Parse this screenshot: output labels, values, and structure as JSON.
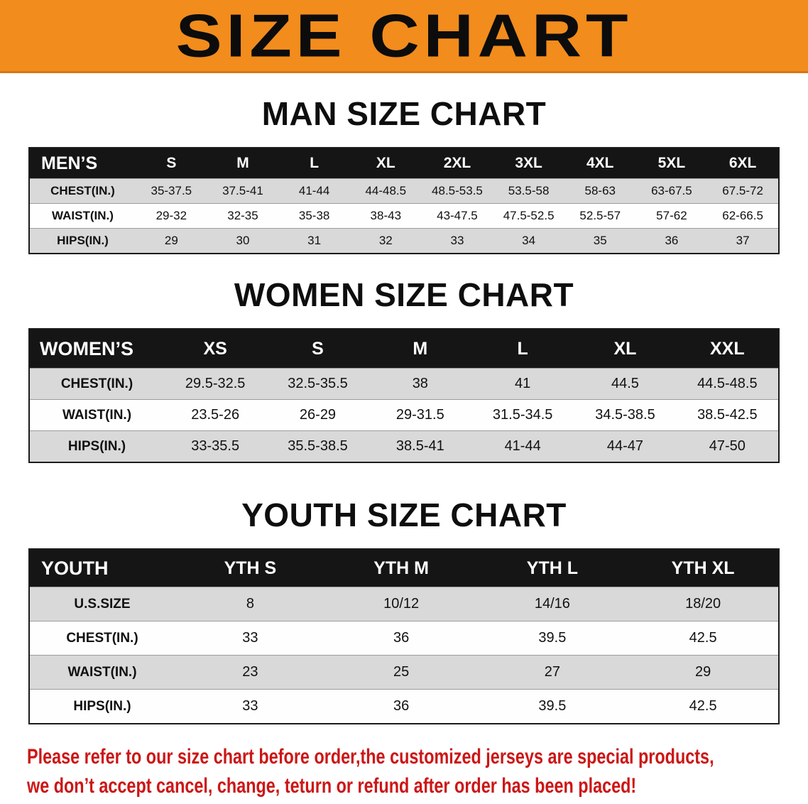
{
  "banner": {
    "title": "SIZE CHART",
    "bg_color": "#f28c1c"
  },
  "chart_data": [
    {
      "type": "table",
      "id": "men",
      "title": "MAN SIZE CHART",
      "corner_label": "MEN’S",
      "columns": [
        "S",
        "M",
        "L",
        "XL",
        "2XL",
        "3XL",
        "4XL",
        "5XL",
        "6XL"
      ],
      "rows": [
        {
          "label": "CHEST(IN.)",
          "values": [
            "35-37.5",
            "37.5-41",
            "41-44",
            "44-48.5",
            "48.5-53.5",
            "53.5-58",
            "58-63",
            "63-67.5",
            "67.5-72"
          ]
        },
        {
          "label": "WAIST(IN.)",
          "values": [
            "29-32",
            "32-35",
            "35-38",
            "38-43",
            "43-47.5",
            "47.5-52.5",
            "52.5-57",
            "57-62",
            "62-66.5"
          ]
        },
        {
          "label": "HIPS(IN.)",
          "values": [
            "29",
            "30",
            "31",
            "32",
            "33",
            "34",
            "35",
            "36",
            "37"
          ]
        }
      ]
    },
    {
      "type": "table",
      "id": "women",
      "title": "WOMEN SIZE CHART",
      "corner_label": "WOMEN’S",
      "columns": [
        "XS",
        "S",
        "M",
        "L",
        "XL",
        "XXL"
      ],
      "rows": [
        {
          "label": "CHEST(IN.)",
          "values": [
            "29.5-32.5",
            "32.5-35.5",
            "38",
            "41",
            "44.5",
            "44.5-48.5"
          ]
        },
        {
          "label": "WAIST(IN.)",
          "values": [
            "23.5-26",
            "26-29",
            "29-31.5",
            "31.5-34.5",
            "34.5-38.5",
            "38.5-42.5"
          ]
        },
        {
          "label": "HIPS(IN.)",
          "values": [
            "33-35.5",
            "35.5-38.5",
            "38.5-41",
            "41-44",
            "44-47",
            "47-50"
          ]
        }
      ]
    },
    {
      "type": "table",
      "id": "youth",
      "title": "YOUTH SIZE CHART",
      "corner_label": "YOUTH",
      "columns": [
        "YTH S",
        "YTH M",
        "YTH L",
        "YTH XL"
      ],
      "rows": [
        {
          "label": "U.S.SIZE",
          "values": [
            "8",
            "10/12",
            "14/16",
            "18/20"
          ]
        },
        {
          "label": "CHEST(IN.)",
          "values": [
            "33",
            "36",
            "39.5",
            "42.5"
          ]
        },
        {
          "label": "WAIST(IN.)",
          "values": [
            "23",
            "25",
            "27",
            "29"
          ]
        },
        {
          "label": "HIPS(IN.)",
          "values": [
            "33",
            "36",
            "39.5",
            "42.5"
          ]
        }
      ]
    }
  ],
  "footer": {
    "color": "#cc1616",
    "lines": [
      "Please refer to our size chart before order,the customized jerseys are special products,",
      "we don’t accept cancel, change, teturn or refund after order has been placed!"
    ]
  }
}
